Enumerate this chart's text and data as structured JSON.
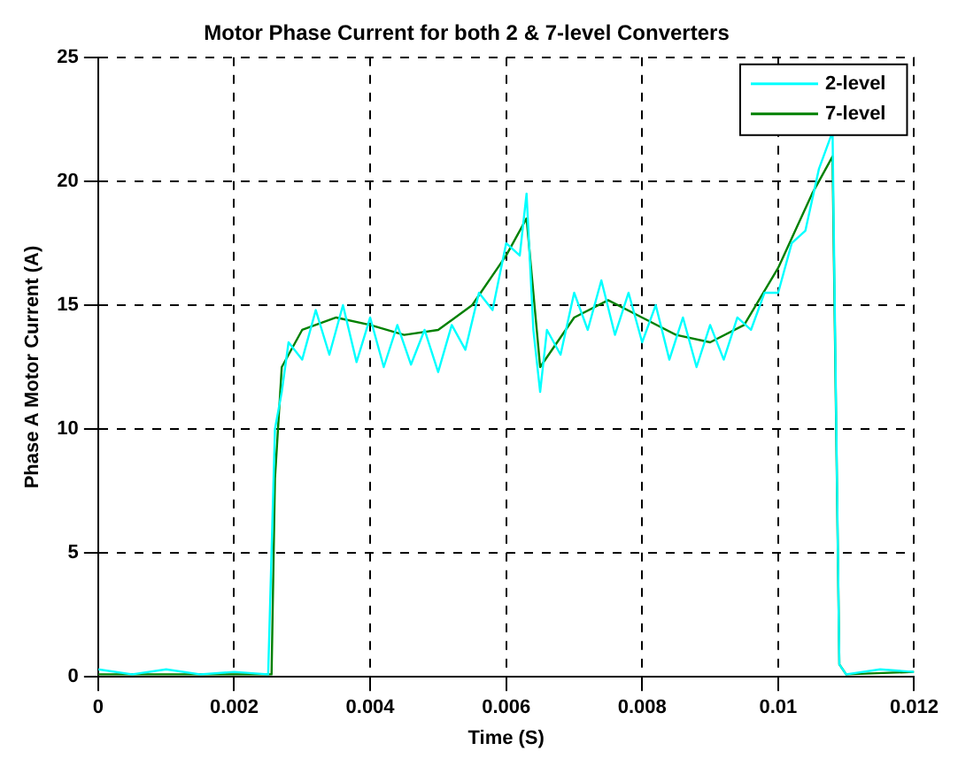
{
  "chart_data": {
    "type": "line",
    "title": "Motor Phase Current for both 2 & 7-level Converters",
    "xlabel": "Time (S)",
    "ylabel": "Phase A Motor Current (A)",
    "xlim": [
      0,
      0.012
    ],
    "xticks": [
      0,
      0.002,
      0.004,
      0.006,
      0.008,
      0.01,
      0.012
    ],
    "ylim": [
      0,
      25
    ],
    "yticks": [
      0,
      5,
      10,
      15,
      20,
      25
    ],
    "grid": true,
    "line_style": "solid",
    "legend": "top right",
    "series": [
      {
        "name": "2-level",
        "color": "#00ffff",
        "x": [
          0,
          0.0005,
          0.001,
          0.0015,
          0.002,
          0.0025,
          0.0026,
          0.0027,
          0.0028,
          0.003,
          0.0032,
          0.0034,
          0.0036,
          0.0038,
          0.004,
          0.0042,
          0.0044,
          0.0046,
          0.0048,
          0.005,
          0.0052,
          0.0054,
          0.0056,
          0.0058,
          0.006,
          0.0062,
          0.0063,
          0.0064,
          0.0065,
          0.0066,
          0.0068,
          0.007,
          0.0072,
          0.0074,
          0.0076,
          0.0078,
          0.008,
          0.0082,
          0.0084,
          0.0086,
          0.0088,
          0.009,
          0.0092,
          0.0094,
          0.0096,
          0.0098,
          0.01,
          0.0102,
          0.0104,
          0.0106,
          0.0108,
          0.0109,
          0.011,
          0.0115,
          0.012
        ],
        "values": [
          0.3,
          0.1,
          0.3,
          0.1,
          0.2,
          0.1,
          10,
          11.5,
          13.5,
          12.8,
          14.8,
          13,
          15,
          12.7,
          14.5,
          12.5,
          14.2,
          12.6,
          14,
          12.3,
          14.2,
          13.2,
          15.5,
          14.8,
          17.5,
          17,
          19.5,
          14,
          11.5,
          14,
          13,
          15.5,
          14,
          16,
          13.8,
          15.5,
          13.5,
          15,
          12.8,
          14.5,
          12.5,
          14.2,
          12.8,
          14.5,
          14,
          15.5,
          15.5,
          17.5,
          18,
          20.5,
          22,
          0.5,
          0.1,
          0.3,
          0.2
        ]
      },
      {
        "name": "7-level",
        "color": "#008000",
        "x": [
          0,
          0.001,
          0.002,
          0.0025,
          0.00255,
          0.0026,
          0.0027,
          0.003,
          0.0035,
          0.004,
          0.0045,
          0.005,
          0.0055,
          0.006,
          0.0063,
          0.0065,
          0.007,
          0.0075,
          0.008,
          0.0085,
          0.009,
          0.0095,
          0.01,
          0.0105,
          0.0108,
          0.0109,
          0.011,
          0.012
        ],
        "values": [
          0.1,
          0.1,
          0.1,
          0.1,
          0.1,
          8,
          12.5,
          14,
          14.5,
          14.2,
          13.8,
          14,
          15,
          17,
          18.5,
          12.5,
          14.5,
          15.2,
          14.5,
          13.8,
          13.5,
          14.2,
          16.5,
          19.5,
          21,
          0.5,
          0.1,
          0.2
        ]
      }
    ]
  }
}
